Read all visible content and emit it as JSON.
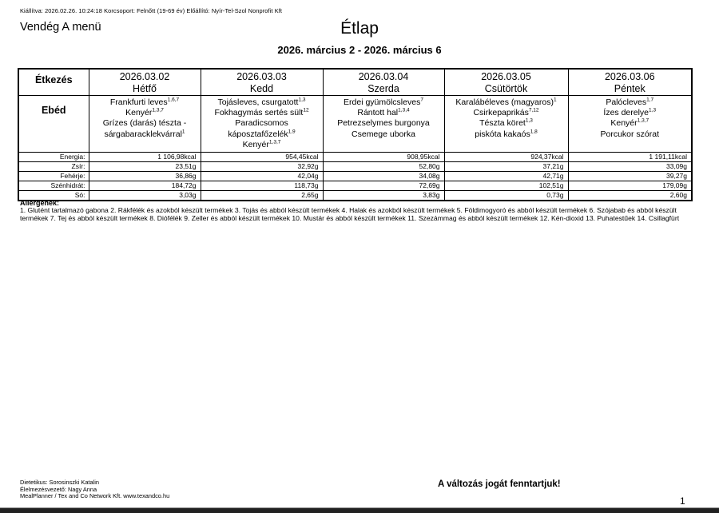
{
  "page": {
    "meta_line": "Kiállítva: 2026.02.26. 10:24:18 Korcsoport: Felnőtt (19-69 év) Előállító: Nyír-Tel-Szol Nonprofit Kft",
    "menu_name": "Vendég A menü",
    "title": "Étlap",
    "date_range": "2026. március 2 - 2026. március 6",
    "page_number": "1"
  },
  "table": {
    "meal_header": "Étkezés",
    "meal_row_label": "Ebéd",
    "nutrition_labels": [
      "Energia:",
      "Zsír:",
      "Fehérje:",
      "Szénhidrát:",
      "Só:"
    ],
    "days": [
      {
        "date": "2026.03.02",
        "name": "Hétfő",
        "items": [
          {
            "t": "Frankfurti leves",
            "s": "1,6,7"
          },
          {
            "t": "Kenyér",
            "s": "1,3,7"
          },
          {
            "t": "Grízes (darás) tészta - sárgabaracklekvárral",
            "s": "1"
          }
        ],
        "nutrition": [
          "1 106,98kcal",
          "23,51g",
          "36,86g",
          "184,72g",
          "3,03g"
        ]
      },
      {
        "date": "2026.03.03",
        "name": "Kedd",
        "items": [
          {
            "t": "Tojásleves, csurgatott",
            "s": "1,3"
          },
          {
            "t": "Fokhagymás sertés sült",
            "s": "12"
          },
          {
            "t": "Paradicsomos káposztafőzelék",
            "s": "1,9"
          },
          {
            "t": "Kenyér",
            "s": "1,3,7"
          }
        ],
        "nutrition": [
          "954,45kcal",
          "32,92g",
          "42,04g",
          "118,73g",
          "2,65g"
        ]
      },
      {
        "date": "2026.03.04",
        "name": "Szerda",
        "items": [
          {
            "t": "Erdei gyümölcsleves",
            "s": "7"
          },
          {
            "t": "Rántott hal",
            "s": "1,3,4"
          },
          {
            "t": "Petrezselymes burgonya",
            "s": ""
          },
          {
            "t": "Csemege uborka",
            "s": ""
          }
        ],
        "nutrition": [
          "908,95kcal",
          "52,80g",
          "34,08g",
          "72,69g",
          "3,83g"
        ]
      },
      {
        "date": "2026.03.05",
        "name": "Csütörtök",
        "items": [
          {
            "t": "Karalábéleves (magyaros)",
            "s": "1"
          },
          {
            "t": "Csirkepaprikás",
            "s": "7,12"
          },
          {
            "t": "Tészta köret",
            "s": "1,3"
          },
          {
            "t": "piskóta kakaós",
            "s": "1,8"
          }
        ],
        "nutrition": [
          "924,37kcal",
          "37,21g",
          "42,71g",
          "102,51g",
          "0,73g"
        ]
      },
      {
        "date": "2026.03.06",
        "name": "Péntek",
        "items": [
          {
            "t": "Palócleves",
            "s": "1,7"
          },
          {
            "t": "Ízes derelye",
            "s": "1,3"
          },
          {
            "t": "Kenyér",
            "s": "1,3,7"
          },
          {
            "t": "Porcukor szórat",
            "s": ""
          }
        ],
        "nutrition": [
          "1 191,11kcal",
          "33,09g",
          "39,27g",
          "179,09g",
          "2,60g"
        ]
      }
    ]
  },
  "allergens": {
    "title": "Allergének:",
    "text": "1. Glutént tartalmazó gabona 2. Rákfélék és azokból készült termékek 3. Tojás és abból készült termékek 4. Halak és azokból készült termékek 5. Földimogyoró és abból készült termékek 6. Szójabab és abból készült termékek 7. Tej és abból készült termékek 8. Diófélék 9. Zeller és abból készült termékek 10. Mustár és abból készült termékek 11. Szezámmag és abból készült termékek 12. Kén-dioxid 13. Puhatestűek 14. Csillagfürt"
  },
  "footer": {
    "dietitian": "Dietetikus: Sorosinszki Katalin",
    "catering_manager": "Élelmezésvezető: Nagy Anna",
    "software": "MealPlanner / Tex and Co Network Kft. www.texandco.hu",
    "disclaimer": "A változás jogát fenntartjuk!"
  }
}
